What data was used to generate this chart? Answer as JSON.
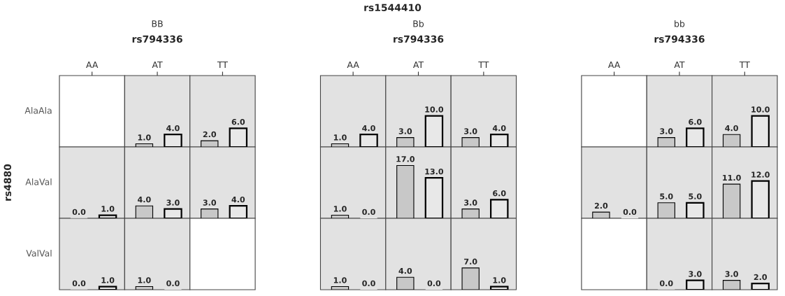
{
  "chart_data": [
    {
      "type": "other",
      "title": "rs1544410",
      "ylabel": "rs4880",
      "annotations": [
        "BB",
        "Bb",
        "bb",
        "rs794336",
        "rs794336",
        "rs794336"
      ]
    },
    {
      "type": "bar",
      "ylabel": "AlaAla",
      "categories": [
        "AA",
        "AT",
        "TT",
        null,
        "AA",
        "AT",
        "TT",
        null,
        "AA",
        "AT",
        "TT"
      ],
      "series": [
        {
          "color": "#c8c8c8",
          "values": [
            null,
            1.0,
            2.0,
            null,
            1.0,
            3.0,
            3.0,
            null,
            null,
            3.0,
            4.0
          ],
          "value_labels": [
            null,
            "1.0",
            "2.0",
            null,
            "1.0",
            "3.0",
            "3.0",
            null,
            null,
            "3.0",
            "4.0"
          ]
        },
        {
          "color": "#e8e8e8",
          "values": [
            null,
            4.0,
            6.0,
            null,
            4.0,
            10.0,
            4.0,
            null,
            null,
            6.0,
            10.0
          ],
          "value_labels": [
            null,
            "4.0",
            "6.0",
            null,
            "4.0",
            "10.0",
            "4.0",
            null,
            null,
            "6.0",
            "10.0"
          ]
        }
      ]
    },
    {
      "type": "bar",
      "ylabel": "AlaVal",
      "categories": [
        null,
        null,
        null,
        null,
        null,
        null,
        null,
        null,
        null,
        null,
        null
      ],
      "series": [
        {
          "color": "#c8c8c8",
          "values": [
            0.0,
            4.0,
            3.0,
            null,
            1.0,
            17.0,
            3.0,
            null,
            2.0,
            5.0,
            11.0
          ],
          "value_labels": [
            "0.0",
            "4.0",
            "3.0",
            null,
            "1.0",
            "17.0",
            "3.0",
            null,
            "2.0",
            "5.0",
            "11.0"
          ]
        },
        {
          "color": "#e8e8e8",
          "values": [
            1.0,
            3.0,
            4.0,
            null,
            0.0,
            13.0,
            6.0,
            null,
            0.0,
            5.0,
            12.0
          ],
          "value_labels": [
            "1.0",
            "3.0",
            "4.0",
            null,
            "0.0",
            "13.0",
            "6.0",
            null,
            "0.0",
            "5.0",
            "12.0"
          ]
        }
      ]
    },
    {
      "type": "bar",
      "ylabel": "ValVal",
      "categories": [
        null,
        null,
        null,
        null,
        null,
        null,
        null,
        null,
        null,
        null,
        null
      ],
      "series": [
        {
          "color": "#c8c8c8",
          "values": [
            0.0,
            1.0,
            null,
            null,
            1.0,
            4.0,
            7.0,
            null,
            null,
            0.0,
            3.0
          ],
          "value_labels": [
            "0.0",
            "1.0",
            null,
            null,
            "1.0",
            "4.0",
            "7.0",
            null,
            null,
            "0.0",
            "3.0"
          ]
        },
        {
          "color": "#e8e8e8",
          "values": [
            1.0,
            0.0,
            null,
            null,
            0.0,
            0.0,
            1.0,
            null,
            null,
            3.0,
            2.0
          ],
          "value_labels": [
            "1.0",
            "0.0",
            null,
            null,
            "0.0",
            "0.0",
            "1.0",
            null,
            null,
            "3.0",
            "2.0"
          ]
        }
      ]
    }
  ]
}
